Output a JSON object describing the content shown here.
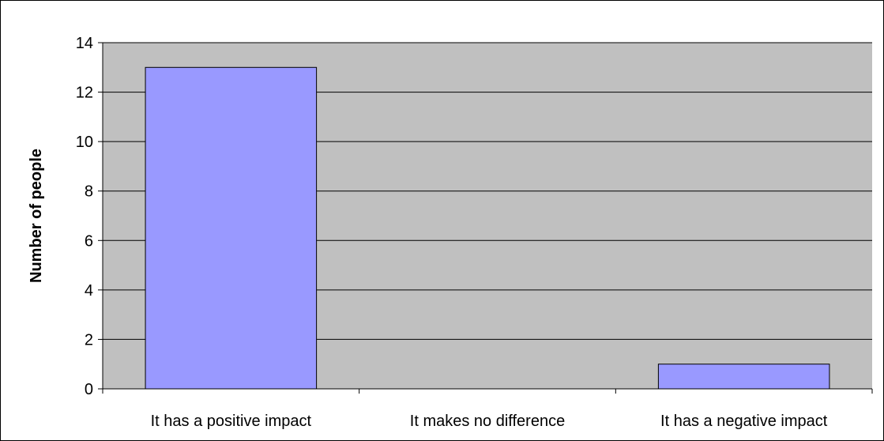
{
  "chart_data": {
    "type": "bar",
    "title": "",
    "xlabel": "",
    "ylabel": "Number of people",
    "categories": [
      "It has a positive impact",
      "It makes no difference",
      "It has a negative impact"
    ],
    "values": [
      13,
      0,
      1
    ],
    "ylim": [
      0,
      14
    ],
    "yticks": [
      0,
      2,
      4,
      6,
      8,
      10,
      12,
      14
    ],
    "grid": true,
    "legend": "none",
    "colors": {
      "plot_background": "#c0c0c0",
      "bar_fill": "#9999ff",
      "bar_stroke": "#000000",
      "gridline": "#000000"
    }
  }
}
